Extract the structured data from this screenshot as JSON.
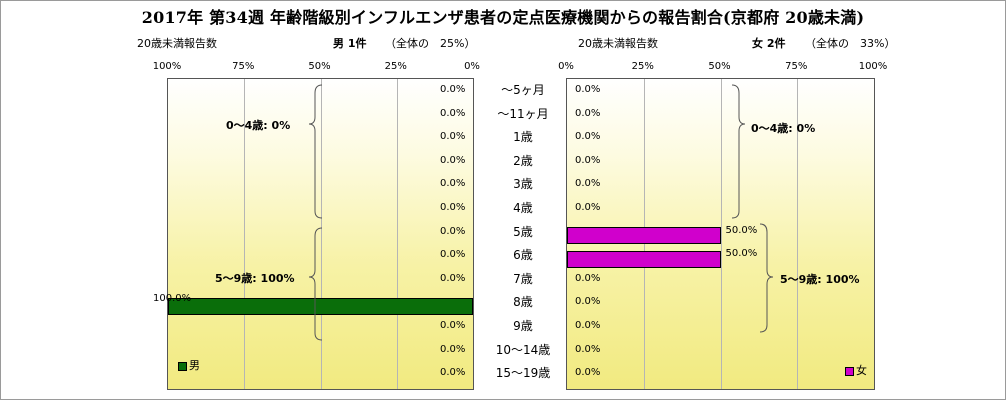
{
  "title": "2017年 第34週 年齢階級別インフルエンザ患者の定点医療機関からの報告割合(京都府 20歳未満)",
  "left_header": {
    "caption": "20歳未満報告数",
    "series": "男 1件",
    "share": "（全体の　25%）"
  },
  "right_header": {
    "caption": "20歳未満報告数",
    "series": "女 2件",
    "share": "（全体の　33%）"
  },
  "colors": {
    "male": "#0a6e0a",
    "female": "#d000cc"
  },
  "chart_data": [
    {
      "type": "bar",
      "orientation": "horizontal",
      "direction": "right-to-left",
      "categories": [
        "～5ヶ月",
        "～11ヶ月",
        "1歳",
        "2歳",
        "3歳",
        "4歳",
        "5歳",
        "6歳",
        "7歳",
        "8歳",
        "9歳",
        "10～14歳",
        "15～19歳"
      ],
      "series": [
        {
          "name": "男",
          "values": [
            0,
            0,
            0,
            0,
            0,
            0,
            0,
            0,
            0,
            100,
            0,
            0,
            0
          ]
        }
      ],
      "data_labels": [
        "0.0%",
        "0.0%",
        "0.0%",
        "0.0%",
        "0.0%",
        "0.0%",
        "0.0%",
        "0.0%",
        "0.0%",
        "100.0%",
        "0.0%",
        "0.0%",
        "0.0%"
      ],
      "xlim": [
        0,
        100
      ],
      "ticks": [
        "100%",
        "75%",
        "50%",
        "25%",
        "0%"
      ],
      "groups": [
        {
          "label": "0～4歳: 0%",
          "from": 0,
          "to": 5
        },
        {
          "label": "5～9歳: 100%",
          "from": 6,
          "to": 10
        }
      ],
      "legend": "bottom-left",
      "grid": true
    },
    {
      "type": "bar",
      "orientation": "horizontal",
      "categories": [
        "～5ヶ月",
        "～11ヶ月",
        "1歳",
        "2歳",
        "3歳",
        "4歳",
        "5歳",
        "6歳",
        "7歳",
        "8歳",
        "9歳",
        "10～14歳",
        "15～19歳"
      ],
      "series": [
        {
          "name": "女",
          "values": [
            0,
            0,
            0,
            0,
            0,
            0,
            50,
            50,
            0,
            0,
            0,
            0,
            0
          ]
        }
      ],
      "data_labels": [
        "0.0%",
        "0.0%",
        "0.0%",
        "0.0%",
        "0.0%",
        "0.0%",
        "50.0%",
        "50.0%",
        "0.0%",
        "0.0%",
        "0.0%",
        "0.0%",
        "0.0%"
      ],
      "xlim": [
        0,
        100
      ],
      "ticks": [
        "0%",
        "25%",
        "50%",
        "75%",
        "100%"
      ],
      "groups": [
        {
          "label": "0～4歳: 0%",
          "from": 0,
          "to": 5
        },
        {
          "label": "5～9歳: 100%",
          "from": 6,
          "to": 10
        }
      ],
      "legend": "bottom-right",
      "grid": true
    }
  ]
}
